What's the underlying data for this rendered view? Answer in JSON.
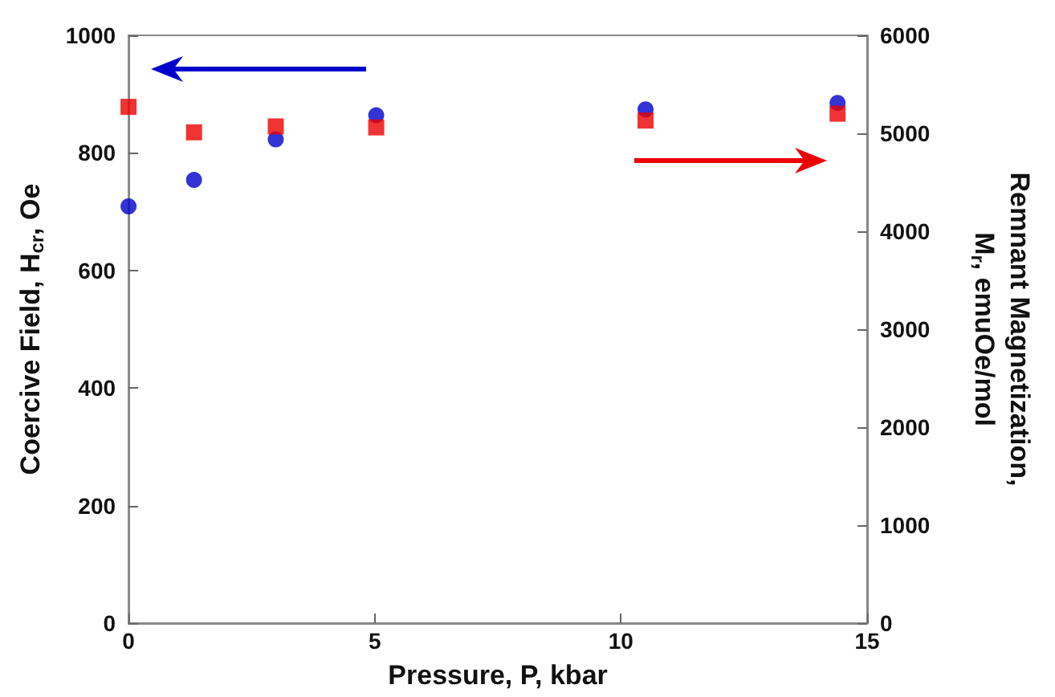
{
  "chart_data": {
    "type": "scatter",
    "xlabel": "Pressure, P, kbar",
    "ylabel": "Coercive Field, H$_{cr}$, Oe",
    "y2label": "Remnant Magnetization, M$_{r}$, emuOe/mol",
    "xlim": [
      0,
      15
    ],
    "xticks": [
      0,
      5,
      10,
      15
    ],
    "ylim": [
      0,
      1000
    ],
    "yticks": [
      0,
      200,
      400,
      600,
      800,
      1000
    ],
    "y2lim": [
      0,
      6000
    ],
    "y2ticks": [
      0,
      1000,
      2000,
      3000,
      4000,
      5000,
      6000
    ],
    "series": [
      {
        "color": "#0000cc",
        "marker": "circle",
        "x": [
          0,
          1.33,
          2.99,
          5.03,
          10.5,
          14.4
        ],
        "values": [
          709,
          754,
          823,
          864,
          874,
          885
        ]
      },
      {
        "color": "#ee0000",
        "marker": "square",
        "axis": "y2",
        "x": [
          0,
          1.33,
          2.99,
          5.03,
          10.5,
          14.4
        ],
        "values": [
          5270,
          5010,
          5070,
          5060,
          5130,
          5200
        ]
      }
    ]
  }
}
